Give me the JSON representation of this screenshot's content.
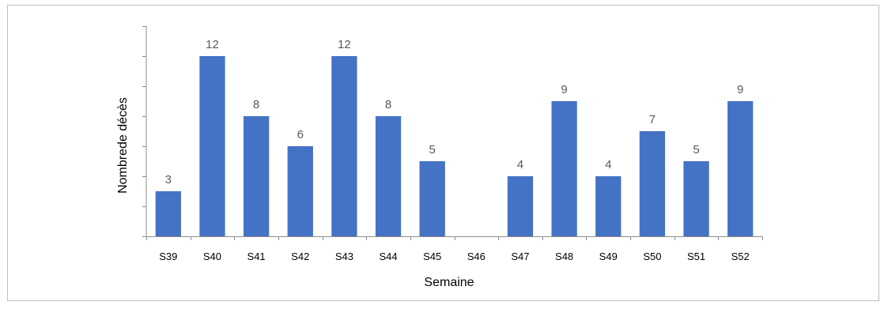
{
  "chart_data": {
    "type": "bar",
    "xlabel": "Semaine",
    "ylabel": "Nombrede décès",
    "ylim": [
      0,
      14
    ],
    "categories": [
      "S39",
      "S40",
      "S41",
      "S42",
      "S43",
      "S44",
      "S45",
      "S46",
      "S47",
      "S48",
      "S49",
      "S50",
      "S51",
      "S52"
    ],
    "values": [
      3,
      12,
      8,
      6,
      12,
      8,
      5,
      0,
      4,
      9,
      4,
      7,
      5,
      9
    ],
    "data_labels": [
      "3",
      "12",
      "8",
      "6",
      "12",
      "8",
      "5",
      "",
      "4",
      "9",
      "4",
      "7",
      "5",
      "9"
    ],
    "bar_color": "#4472c4",
    "axis_color": "#8c8c8c",
    "grid": false,
    "legend": "none"
  }
}
